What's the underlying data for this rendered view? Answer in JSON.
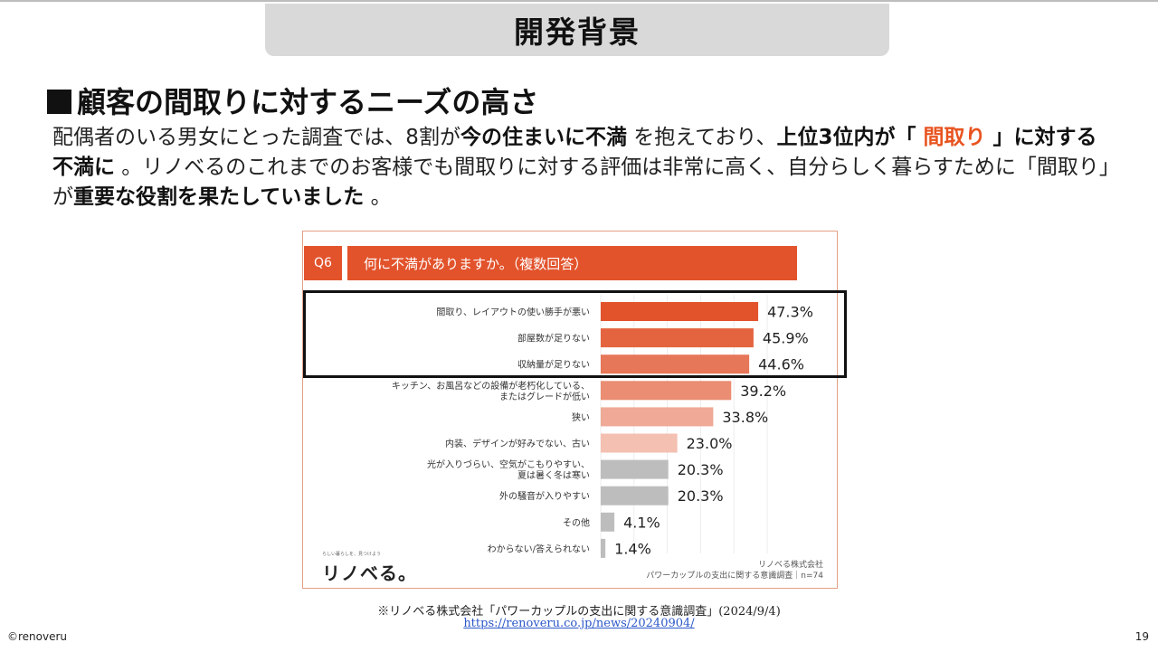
{
  "slide": {
    "title": "開発背景",
    "heading": "顧客の間取りに対するニーズの高さ",
    "body": {
      "p1": "配偶者のいる男女にとった調査では、8割が",
      "b1": "今の住まいに不満",
      "p2": " を抱えており、",
      "b2": "上位3位内が「 ",
      "hl": "間取り",
      "b3": " 」に対する不満に",
      "p3": " 。リノベるのこれまでのお客様でも間取りに対する評価は非常に高く、自分らしく暮らすために「間取り」が",
      "b4": "重要な役割を果たしていました",
      "p4": " 。"
    },
    "footnote": "※リノベる株式会社「パワーカップルの支出に関する意識調査」(2024/9/4)",
    "footnote_link": "https://renoveru.co.jp/news/20240904/",
    "copyright": "©renoveru",
    "page_number": "19"
  },
  "chart": {
    "q_label": "Q6",
    "question": "何に不満がありますか。（複数回答）",
    "logo_tagline": "らしい暮らしを、見つけよう",
    "logo": "リノベる。",
    "source_company": "リノベる株式会社",
    "source_survey": "パワーカップルの支出に関する意識調査｜n=74"
  },
  "chart_data": {
    "type": "bar",
    "orientation": "horizontal",
    "categories": [
      "間取り、レイアウトの使い勝手が悪い",
      "部屋数が足りない",
      "収納量が足りない",
      "キッチン、お風呂などの設備が老朽化している、\nまたはグレードが低い",
      "狭い",
      "内装、デザインが好みでない、古い",
      "光が入りづらい、空気がこもりやすい、\n夏は暑く冬は寒い",
      "外の騒音が入りやすい",
      "その他",
      "わからない/答えられない"
    ],
    "values": [
      47.3,
      45.9,
      44.6,
      39.2,
      33.8,
      23.0,
      20.3,
      20.3,
      4.1,
      1.4
    ],
    "value_labels": [
      "47.3%",
      "45.9%",
      "44.6%",
      "39.2%",
      "33.8%",
      "23.0%",
      "20.3%",
      "20.3%",
      "4.1%",
      "1.4%"
    ],
    "colors": [
      "#e2532c",
      "#e4643f",
      "#e67758",
      "#ea8d72",
      "#efa996",
      "#f3c0b1",
      "#bdbdbd",
      "#bdbdbd",
      "#bdbdbd",
      "#bdbdbd"
    ],
    "grid": true,
    "xlim": [
      0,
      50
    ]
  }
}
